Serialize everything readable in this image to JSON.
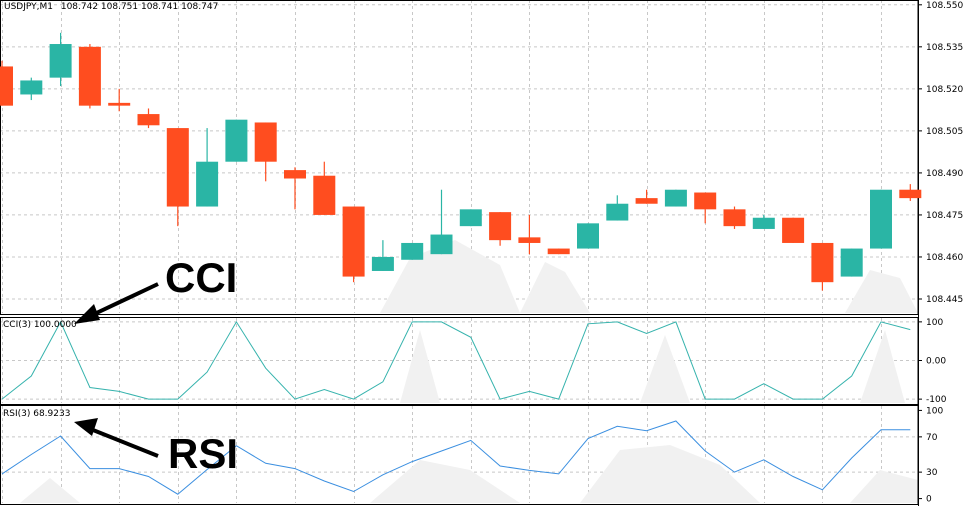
{
  "chart_data": [
    {
      "type": "candlestick",
      "title": "USDJPY,M1",
      "ohlc_label": "108.742 108.751 108.741 108.747",
      "price_axis": {
        "ticks": [
          "108.550",
          "108.535",
          "108.520",
          "108.505",
          "108.490",
          "108.475",
          "108.460",
          "108.445"
        ],
        "ylim": [
          108.44,
          108.551
        ]
      },
      "grid": true,
      "colors": {
        "bull": "#2ab5a5",
        "bear": "#ff4d1f"
      },
      "candles": [
        {
          "o": 108.528,
          "h": 108.53,
          "l": 108.514,
          "c": 108.514
        },
        {
          "o": 108.518,
          "h": 108.524,
          "l": 108.516,
          "c": 108.523
        },
        {
          "o": 108.524,
          "h": 108.54,
          "l": 108.521,
          "c": 108.536
        },
        {
          "o": 108.535,
          "h": 108.536,
          "l": 108.513,
          "c": 108.514
        },
        {
          "o": 108.515,
          "h": 108.52,
          "l": 108.512,
          "c": 108.514
        },
        {
          "o": 108.511,
          "h": 108.513,
          "l": 108.506,
          "c": 108.507
        },
        {
          "o": 108.506,
          "h": 108.506,
          "l": 108.471,
          "c": 108.478
        },
        {
          "o": 108.478,
          "h": 108.506,
          "l": 108.478,
          "c": 108.494
        },
        {
          "o": 108.494,
          "h": 108.509,
          "l": 108.494,
          "c": 108.509
        },
        {
          "o": 108.508,
          "h": 108.508,
          "l": 108.487,
          "c": 108.494
        },
        {
          "o": 108.491,
          "h": 108.492,
          "l": 108.477,
          "c": 108.488
        },
        {
          "o": 108.489,
          "h": 108.494,
          "l": 108.475,
          "c": 108.475
        },
        {
          "o": 108.478,
          "h": 108.478,
          "l": 108.451,
          "c": 108.453
        },
        {
          "o": 108.455,
          "h": 108.466,
          "l": 108.455,
          "c": 108.46
        },
        {
          "o": 108.459,
          "h": 108.465,
          "l": 108.459,
          "c": 108.465
        },
        {
          "o": 108.461,
          "h": 108.484,
          "l": 108.461,
          "c": 108.468
        },
        {
          "o": 108.471,
          "h": 108.477,
          "l": 108.471,
          "c": 108.477
        },
        {
          "o": 108.476,
          "h": 108.476,
          "l": 108.464,
          "c": 108.466
        },
        {
          "o": 108.467,
          "h": 108.475,
          "l": 108.461,
          "c": 108.465
        },
        {
          "o": 108.463,
          "h": 108.463,
          "l": 108.461,
          "c": 108.461
        },
        {
          "o": 108.463,
          "h": 108.472,
          "l": 108.463,
          "c": 108.472
        },
        {
          "o": 108.473,
          "h": 108.482,
          "l": 108.473,
          "c": 108.479
        },
        {
          "o": 108.481,
          "h": 108.484,
          "l": 108.479,
          "c": 108.479
        },
        {
          "o": 108.478,
          "h": 108.484,
          "l": 108.478,
          "c": 108.484
        },
        {
          "o": 108.483,
          "h": 108.483,
          "l": 108.472,
          "c": 108.477
        },
        {
          "o": 108.477,
          "h": 108.478,
          "l": 108.47,
          "c": 108.471
        },
        {
          "o": 108.47,
          "h": 108.475,
          "l": 108.47,
          "c": 108.474
        },
        {
          "o": 108.474,
          "h": 108.474,
          "l": 108.465,
          "c": 108.465
        },
        {
          "o": 108.465,
          "h": 108.465,
          "l": 108.448,
          "c": 108.451
        },
        {
          "o": 108.453,
          "h": 108.463,
          "l": 108.453,
          "c": 108.463
        },
        {
          "o": 108.463,
          "h": 108.484,
          "l": 108.463,
          "c": 108.484
        },
        {
          "o": 108.484,
          "h": 108.486,
          "l": 108.48,
          "c": 108.481
        }
      ]
    },
    {
      "type": "line",
      "label": "CCI(3) 100.0000",
      "axis_ticks": [
        "100",
        "0.00",
        "-100"
      ],
      "ylim": [
        -110,
        110
      ],
      "color": "#36b3ad",
      "values": [
        -100,
        -40,
        100,
        -70,
        -80,
        -100,
        -100,
        -30,
        100,
        -20,
        -100,
        -75,
        -100,
        -55,
        100,
        100,
        60,
        -100,
        -80,
        -100,
        95,
        100,
        70,
        100,
        -100,
        -100,
        -60,
        -100,
        -100,
        -40,
        100,
        80
      ]
    },
    {
      "type": "line",
      "label": "RSI(3) 68.9233",
      "axis_ticks": [
        "100",
        "70",
        "30",
        "0"
      ],
      "ylim": [
        -5,
        105
      ],
      "color": "#3b8fe0",
      "values": [
        28,
        50,
        71,
        34,
        34,
        25,
        5,
        33,
        60,
        40,
        34,
        20,
        8,
        27,
        42,
        54,
        66,
        37,
        32,
        28,
        68,
        82,
        77,
        88,
        54,
        30,
        44,
        25,
        10,
        46,
        78,
        78
      ]
    }
  ],
  "annotations": {
    "cci_label": "CCI",
    "rsi_label": "RSI"
  }
}
